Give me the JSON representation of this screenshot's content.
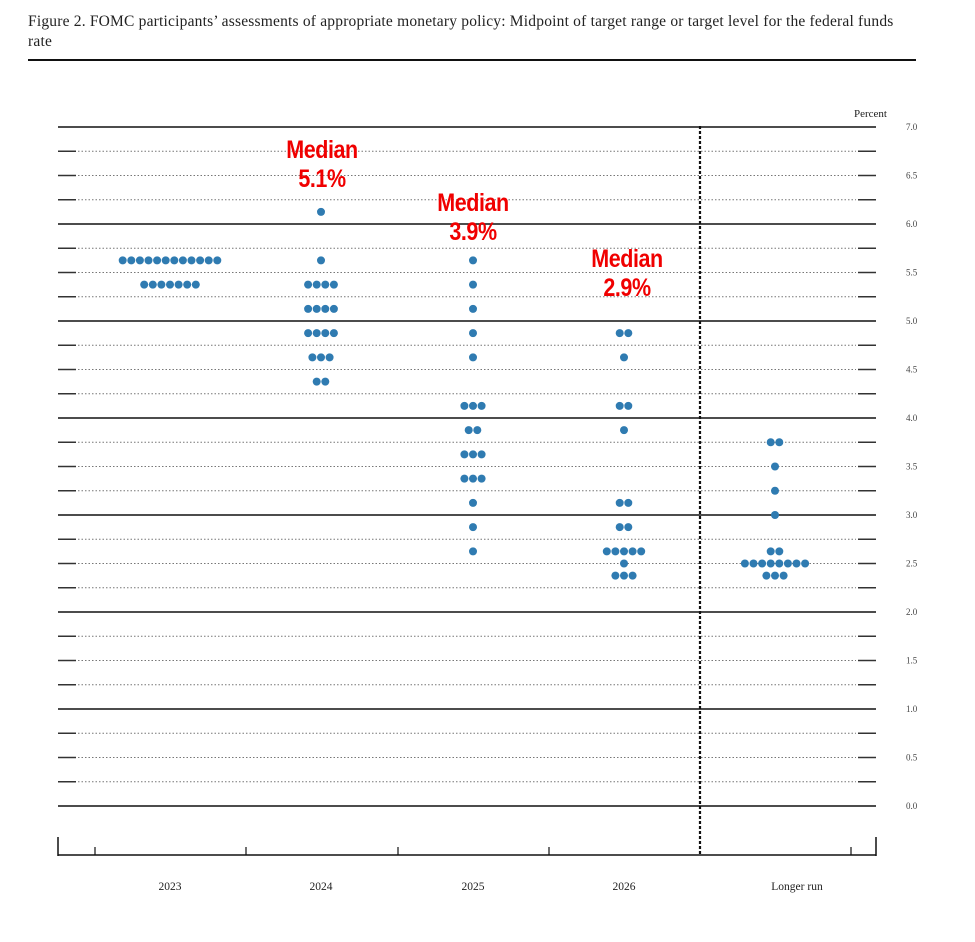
{
  "title": "Figure 2.  FOMC participants’ assessments of appropriate monetary policy:  Midpoint of target range or target level for the federal funds rate",
  "chart_data": {
    "type": "scatter",
    "title": "Figure 2.  FOMC participants’ assessments of appropriate monetary policy:  Midpoint of target range or target level for the federal funds rate",
    "ylabel": "Percent",
    "ylim": [
      0,
      7
    ],
    "yticks": [
      "0.0",
      "0.5",
      "1.0",
      "1.5",
      "2.0",
      "2.5",
      "3.0",
      "3.5",
      "4.0",
      "4.5",
      "5.0",
      "5.5",
      "6.0",
      "6.5",
      "7.0"
    ],
    "categories": [
      "2023",
      "2024",
      "2025",
      "2026",
      "Longer run"
    ],
    "grid": true,
    "dot_color": "#2f7bb1",
    "annotation_color": "#f00000",
    "dots": [
      {
        "category": "2023",
        "levels": [
          [
            5.625,
            12
          ],
          [
            5.375,
            7
          ]
        ]
      },
      {
        "category": "2024",
        "levels": [
          [
            6.125,
            1
          ],
          [
            5.625,
            1
          ],
          [
            5.375,
            4
          ],
          [
            5.125,
            4
          ],
          [
            4.875,
            4
          ],
          [
            4.625,
            3
          ],
          [
            4.375,
            2
          ]
        ]
      },
      {
        "category": "2025",
        "levels": [
          [
            5.625,
            1
          ],
          [
            5.375,
            1
          ],
          [
            5.125,
            1
          ],
          [
            4.875,
            1
          ],
          [
            4.625,
            1
          ],
          [
            4.125,
            3
          ],
          [
            3.875,
            2
          ],
          [
            3.625,
            3
          ],
          [
            3.375,
            3
          ],
          [
            3.125,
            1
          ],
          [
            2.875,
            1
          ],
          [
            2.625,
            1
          ]
        ]
      },
      {
        "category": "2026",
        "levels": [
          [
            4.875,
            2
          ],
          [
            4.625,
            1
          ],
          [
            4.125,
            2
          ],
          [
            3.875,
            1
          ],
          [
            3.125,
            2
          ],
          [
            2.875,
            2
          ],
          [
            2.625,
            5
          ],
          [
            2.5,
            1
          ],
          [
            2.375,
            3
          ]
        ]
      },
      {
        "category": "Longer run",
        "levels": [
          [
            3.75,
            2
          ],
          [
            3.5,
            1
          ],
          [
            3.25,
            1
          ],
          [
            3.0,
            1
          ],
          [
            2.625,
            2
          ],
          [
            2.5,
            8
          ],
          [
            2.375,
            3
          ]
        ]
      }
    ],
    "annotations": [
      {
        "category": "2024",
        "line1": "Median",
        "line2": "5.1%"
      },
      {
        "category": "2025",
        "line1": "Median",
        "line2": "3.9%"
      },
      {
        "category": "2026",
        "line1": "Median",
        "line2": "2.9%"
      }
    ]
  }
}
